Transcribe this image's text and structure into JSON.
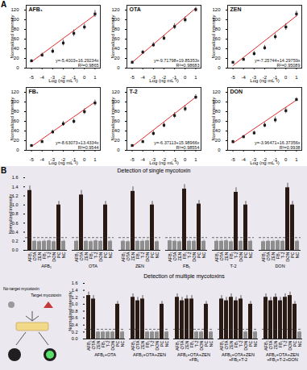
{
  "chart_data": [
    {
      "type": "scatter",
      "title": "AFB₁",
      "x": [
        -5,
        -4,
        -3,
        -2,
        -1,
        0,
        1
      ],
      "values": [
        15,
        27,
        35,
        52,
        72,
        85,
        112
      ],
      "errors": [
        3,
        4,
        5,
        6,
        7,
        6,
        7
      ],
      "color": "#1a1a1a",
      "marker": "square",
      "fit": {
        "type": "line",
        "x": [
          -5,
          1
        ],
        "values": [
          13,
          110
        ],
        "color": "#e8292b"
      },
      "annotations": [
        "y=-5.4003+16.29234x",
        "R²=0.9865"
      ],
      "xlabel": "Log (ng mL⁻¹)",
      "ylabel": "Normalized intensity",
      "xlim": [
        -5.5,
        1.5
      ],
      "xticks": [
        -5,
        -4,
        -3,
        -2,
        -1,
        0,
        1
      ],
      "ylim": [
        0,
        130
      ],
      "yticks": [
        0,
        20,
        40,
        60,
        80,
        100,
        120
      ]
    },
    {
      "type": "scatter",
      "title": "OTA",
      "x": [
        -5,
        -4,
        -3,
        -2,
        -1,
        0,
        1
      ],
      "values": [
        12,
        33,
        48,
        62,
        86,
        100,
        121
      ],
      "errors": [
        3,
        4,
        5,
        5,
        6,
        6,
        5
      ],
      "color": "#1a1a1a",
      "marker": "square",
      "fit": {
        "type": "line",
        "x": [
          -5,
          1
        ],
        "values": [
          12,
          124
        ],
        "color": "#e8292b"
      },
      "annotations": [
        "y=-9.71798+19.85353x",
        "R²=0.98683"
      ],
      "xlabel": "Log (ng mL⁻¹)",
      "ylabel": "Normalized intensity",
      "xlim": [
        -5.5,
        1.5
      ],
      "xticks": [
        -5,
        -4,
        -3,
        -2,
        -1,
        0,
        1
      ],
      "ylim": [
        0,
        130
      ],
      "yticks": [
        0,
        20,
        40,
        60,
        80,
        100,
        120
      ]
    },
    {
      "type": "scatter",
      "title": "ZEN",
      "x": [
        -5,
        -4,
        -3,
        -2,
        -1,
        0,
        1
      ],
      "values": [
        12,
        18,
        30,
        42,
        65,
        85,
        112
      ],
      "errors": [
        2,
        3,
        5,
        5,
        6,
        7,
        6
      ],
      "color": "#1a1a1a",
      "marker": "square",
      "fit": {
        "type": "line",
        "x": [
          -5,
          1
        ],
        "values": [
          5,
          108
        ],
        "color": "#e8292b"
      },
      "annotations": [
        "y=-7.25744+14.29759x",
        "R²=0.95089"
      ],
      "xlabel": "Log (ng mL⁻¹)",
      "ylabel": "Normalized intensity",
      "xlim": [
        -5.5,
        1.5
      ],
      "xticks": [
        -5,
        -4,
        -3,
        -2,
        -1,
        0,
        1
      ],
      "ylim": [
        0,
        130
      ],
      "yticks": [
        0,
        20,
        40,
        60,
        80,
        100,
        120
      ]
    },
    {
      "type": "scatter",
      "title": "FB₁",
      "x": [
        -5,
        -4,
        -3,
        -2,
        -1,
        0,
        1
      ],
      "values": [
        10,
        18,
        38,
        55,
        60,
        80,
        98
      ],
      "errors": [
        2,
        3,
        4,
        5,
        5,
        6,
        6
      ],
      "color": "#1a1a1a",
      "marker": "square",
      "fit": {
        "type": "line",
        "x": [
          -5,
          1
        ],
        "values": [
          8,
          100
        ],
        "color": "#e8292b"
      },
      "annotations": [
        "y=-8.63073+13.4334x",
        "R²=0.9544"
      ],
      "xlabel": "Log (ng mL⁻¹)",
      "ylabel": "Normalized intensity",
      "xlim": [
        -5.5,
        1.5
      ],
      "xticks": [
        -5,
        -4,
        -3,
        -2,
        -1,
        0,
        1
      ],
      "ylim": [
        0,
        130
      ],
      "yticks": [
        0,
        20,
        40,
        60,
        80,
        100,
        120
      ]
    },
    {
      "type": "scatter",
      "title": "T-2",
      "x": [
        -5,
        -4,
        -3,
        -2,
        -1,
        0,
        1
      ],
      "values": [
        10,
        18,
        35,
        52,
        72,
        86,
        110
      ],
      "errors": [
        2,
        3,
        5,
        5,
        6,
        6,
        5
      ],
      "color": "#1a1a1a",
      "marker": "square",
      "fit": {
        "type": "line",
        "x": [
          -5,
          1
        ],
        "values": [
          8,
          110
        ],
        "color": "#e8292b"
      },
      "annotations": [
        "y=-6.37113+15.98966x",
        "R²=0.98554"
      ],
      "xlabel": "Log (ng mL⁻¹)",
      "ylabel": "Normalized intensity",
      "xlim": [
        -5.5,
        1.5
      ],
      "xticks": [
        -5,
        -4,
        -3,
        -2,
        -1,
        0,
        1
      ],
      "ylim": [
        0,
        130
      ],
      "yticks": [
        0,
        20,
        40,
        60,
        80,
        100,
        120
      ]
    },
    {
      "type": "scatter",
      "title": "DON",
      "x": [
        -5,
        -4,
        -3,
        -2,
        -1,
        0,
        1
      ],
      "values": [
        18,
        28,
        36,
        52,
        63,
        82,
        105
      ],
      "errors": [
        3,
        3,
        4,
        5,
        6,
        6,
        4
      ],
      "color": "#1a1a1a",
      "marker": "square",
      "fit": {
        "type": "line",
        "x": [
          -5,
          1
        ],
        "values": [
          15,
          104
        ],
        "color": "#e8292b"
      },
      "annotations": [
        "y=-3.96471+16.37356x",
        "R²=0.9938"
      ],
      "xlabel": "Log (ng mL⁻¹)",
      "ylabel": "Normalized intensity",
      "xlim": [
        -5.5,
        1.5
      ],
      "xticks": [
        -5,
        -4,
        -3,
        -2,
        -1,
        0,
        1
      ],
      "ylim": [
        0,
        130
      ],
      "yticks": [
        0,
        20,
        40,
        60,
        80,
        100,
        120
      ]
    },
    {
      "type": "bar",
      "title": "Detection of single mycotoxin",
      "ylabel": "Normalized intensity",
      "ylim": [
        0,
        1.6
      ],
      "yticks": [
        {
          "value": 0,
          "label": "0.0"
        },
        0.2,
        0.4,
        0.6,
        0.8,
        {
          "value": 1,
          "label": "1.0"
        },
        1.2,
        1.4,
        1.6
      ],
      "threshold": 0.28,
      "groups": [
        {
          "name": "AFB₁",
          "categories": [
            "AFB₁",
            "OTA",
            "ZEN",
            "FB₁",
            "T-2",
            "DON",
            "PC",
            "NC"
          ],
          "values": [
            1.32,
            0.2,
            0.19,
            0.2,
            0.21,
            0.19,
            1.0,
            0.2
          ],
          "errors": [
            0.1,
            0.03,
            0.03,
            0.03,
            0.03,
            0.03,
            0.08,
            0.03
          ],
          "colors": [
            "#2a1a14",
            "#8e8e8e",
            "#8e8e8e",
            "#8e8e8e",
            "#8e8e8e",
            "#8e8e8e",
            "#2a1a14",
            "#8e8e8e"
          ]
        },
        {
          "name": "OTA",
          "categories": [
            "AFB₁",
            "OTA",
            "ZEN",
            "FB₁",
            "T-2",
            "DON",
            "PC",
            "NC"
          ],
          "values": [
            0.2,
            1.22,
            0.2,
            0.19,
            0.21,
            0.2,
            1.0,
            0.2
          ],
          "errors": [
            0.03,
            0.1,
            0.03,
            0.03,
            0.03,
            0.03,
            0.08,
            0.03
          ],
          "colors": [
            "#8e8e8e",
            "#2a1a14",
            "#8e8e8e",
            "#8e8e8e",
            "#8e8e8e",
            "#8e8e8e",
            "#2a1a14",
            "#8e8e8e"
          ]
        },
        {
          "name": "ZEN",
          "categories": [
            "AFB₁",
            "OTA",
            "ZEN",
            "FB₁",
            "T-2",
            "DON",
            "PC",
            "NC"
          ],
          "values": [
            0.2,
            0.19,
            1.3,
            0.2,
            0.2,
            0.21,
            1.0,
            0.19
          ],
          "errors": [
            0.03,
            0.03,
            0.1,
            0.03,
            0.03,
            0.03,
            0.08,
            0.03
          ],
          "colors": [
            "#8e8e8e",
            "#8e8e8e",
            "#2a1a14",
            "#8e8e8e",
            "#8e8e8e",
            "#8e8e8e",
            "#2a1a14",
            "#8e8e8e"
          ]
        },
        {
          "name": "FB₁",
          "categories": [
            "AFB₁",
            "OTA",
            "ZEN",
            "FB₁",
            "T-2",
            "DON",
            "PC",
            "NC"
          ],
          "values": [
            0.21,
            0.2,
            0.19,
            1.35,
            0.2,
            0.2,
            1.02,
            0.2
          ],
          "errors": [
            0.03,
            0.03,
            0.03,
            0.1,
            0.03,
            0.03,
            0.08,
            0.03
          ],
          "colors": [
            "#8e8e8e",
            "#8e8e8e",
            "#8e8e8e",
            "#2a1a14",
            "#8e8e8e",
            "#8e8e8e",
            "#2a1a14",
            "#8e8e8e"
          ]
        },
        {
          "name": "T-2",
          "categories": [
            "AFB₁",
            "OTA",
            "ZEN",
            "FB₁",
            "T-2",
            "DON",
            "PC",
            "NC"
          ],
          "values": [
            0.2,
            0.2,
            0.21,
            0.19,
            1.28,
            0.2,
            1.0,
            0.2
          ],
          "errors": [
            0.03,
            0.03,
            0.03,
            0.03,
            0.1,
            0.03,
            0.08,
            0.03
          ],
          "colors": [
            "#8e8e8e",
            "#8e8e8e",
            "#8e8e8e",
            "#8e8e8e",
            "#2a1a14",
            "#8e8e8e",
            "#2a1a14",
            "#8e8e8e"
          ]
        },
        {
          "name": "DON",
          "categories": [
            "AFB₁",
            "OTA",
            "ZEN",
            "FB₁",
            "T-2",
            "DON",
            "PC",
            "NC"
          ],
          "values": [
            0.19,
            0.2,
            0.2,
            0.21,
            0.2,
            1.38,
            1.0,
            0.2
          ],
          "errors": [
            0.03,
            0.03,
            0.03,
            0.03,
            0.03,
            0.1,
            0.08,
            0.03
          ],
          "colors": [
            "#8e8e8e",
            "#8e8e8e",
            "#8e8e8e",
            "#8e8e8e",
            "#8e8e8e",
            "#2a1a14",
            "#2a1a14",
            "#8e8e8e"
          ]
        }
      ]
    },
    {
      "type": "bar",
      "title": "Detection of multiple mycotoxins",
      "ylabel": "Normalized intensity",
      "ylim": [
        0,
        1.6
      ],
      "yticks": [
        {
          "value": 0,
          "label": "0.0"
        },
        0.2,
        0.4,
        0.6,
        0.8,
        {
          "value": 1,
          "label": "1.0"
        },
        1.2,
        1.4,
        1.6
      ],
      "threshold": 0.28,
      "groups": [
        {
          "name": "AFB₁+OTA",
          "categories": [
            "AFB₁",
            "OTA",
            "ZEN",
            "FB₁",
            "T-2",
            "DON",
            "PC",
            "NC"
          ],
          "values": [
            1.25,
            1.15,
            0.2,
            0.2,
            0.2,
            0.2,
            1.0,
            0.2
          ],
          "errors": [
            0.1,
            0.1,
            0.03,
            0.03,
            0.03,
            0.03,
            0.08,
            0.03
          ],
          "colors": [
            "#2a1a14",
            "#2a1a14",
            "#8e8e8e",
            "#8e8e8e",
            "#8e8e8e",
            "#8e8e8e",
            "#2a1a14",
            "#8e8e8e"
          ]
        },
        {
          "name": "AFB₁+OTA+ZEN",
          "categories": [
            "AFB₁",
            "OTA",
            "ZEN",
            "FB₁",
            "T-2",
            "DON",
            "PC",
            "NC"
          ],
          "values": [
            1.2,
            1.1,
            1.15,
            0.2,
            0.2,
            0.2,
            1.0,
            0.2
          ],
          "errors": [
            0.1,
            0.1,
            0.1,
            0.03,
            0.03,
            0.03,
            0.08,
            0.03
          ],
          "colors": [
            "#2a1a14",
            "#2a1a14",
            "#2a1a14",
            "#8e8e8e",
            "#8e8e8e",
            "#8e8e8e",
            "#2a1a14",
            "#8e8e8e"
          ]
        },
        {
          "name": "AFB₁+OTA+ZEN+FB₁",
          "categories": [
            "AFB₁",
            "OTA",
            "ZEN",
            "FB₁",
            "T-2",
            "DON",
            "PC",
            "NC"
          ],
          "values": [
            1.2,
            1.1,
            1.15,
            1.15,
            0.2,
            0.2,
            1.0,
            0.2
          ],
          "errors": [
            0.1,
            0.1,
            0.1,
            0.1,
            0.03,
            0.03,
            0.08,
            0.03
          ],
          "colors": [
            "#2a1a14",
            "#2a1a14",
            "#2a1a14",
            "#2a1a14",
            "#8e8e8e",
            "#8e8e8e",
            "#2a1a14",
            "#8e8e8e"
          ]
        },
        {
          "name": "AFB₁+OTA+ZEN+FB₁+T-2",
          "categories": [
            "AFB₁",
            "OTA",
            "ZEN",
            "FB₁",
            "T-2",
            "DON",
            "PC",
            "NC"
          ],
          "values": [
            1.15,
            1.1,
            1.2,
            1.1,
            1.15,
            0.2,
            1.0,
            0.2
          ],
          "errors": [
            0.1,
            0.1,
            0.1,
            0.1,
            0.1,
            0.03,
            0.08,
            0.03
          ],
          "colors": [
            "#2a1a14",
            "#2a1a14",
            "#2a1a14",
            "#2a1a14",
            "#2a1a14",
            "#8e8e8e",
            "#2a1a14",
            "#8e8e8e"
          ]
        },
        {
          "name": "AFB₁+OTA+ZEN+FB₁+T-2+DON",
          "categories": [
            "AFB₁",
            "OTA",
            "ZEN",
            "FB₁",
            "T-2",
            "DON",
            "PC",
            "NC"
          ],
          "values": [
            1.2,
            1.1,
            1.2,
            1.1,
            1.2,
            1.25,
            1.0,
            0.2
          ],
          "errors": [
            0.1,
            0.1,
            0.1,
            0.1,
            0.1,
            0.1,
            0.08,
            0.03
          ],
          "colors": [
            "#2a1a14",
            "#2a1a14",
            "#2a1a14",
            "#2a1a14",
            "#2a1a14",
            "#2a1a14",
            "#2a1a14",
            "#8e8e8e"
          ]
        }
      ]
    }
  ],
  "figure": {
    "panel_labels": [
      "A",
      "B"
    ],
    "schematic": {
      "labels": [
        "No-target mycotoxin",
        "Target mycotoxin"
      ]
    }
  }
}
